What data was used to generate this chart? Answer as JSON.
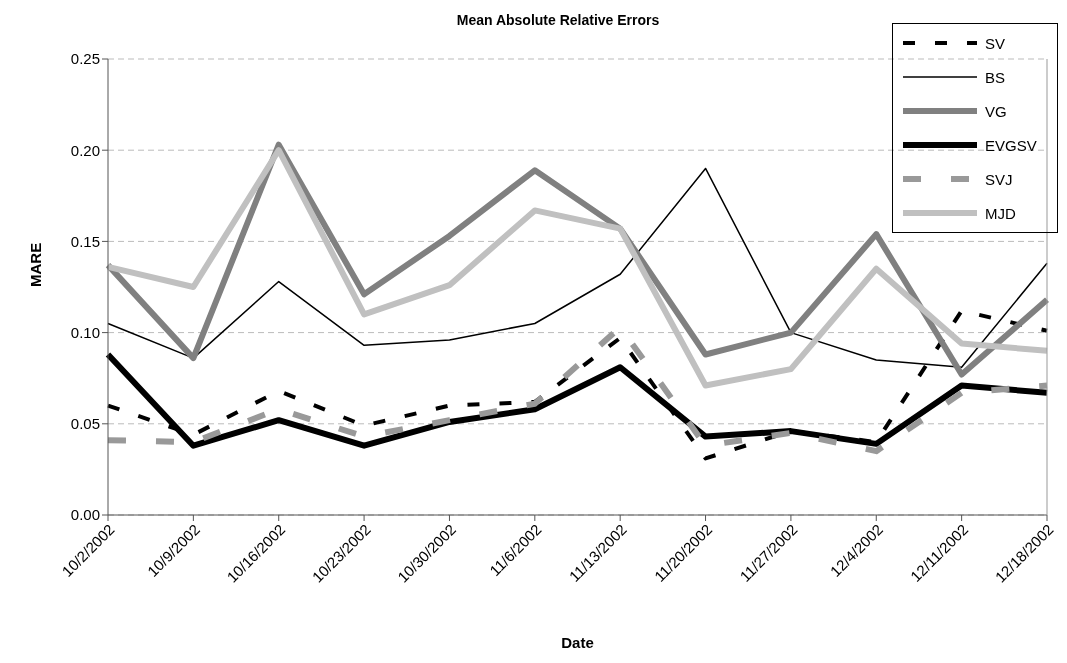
{
  "chart_data": {
    "type": "line",
    "title": "Mean Absolute Relative Errors",
    "xlabel": "Date",
    "ylabel": "MARE",
    "categories": [
      "10/2/2002",
      "10/9/2002",
      "10/16/2002",
      "10/23/2002",
      "10/30/2002",
      "11/6/2002",
      "11/13/2002",
      "11/20/2002",
      "11/27/2002",
      "12/4/2002",
      "12/11/2002",
      "12/18/2002"
    ],
    "series": [
      {
        "name": "SV",
        "color": "#000000",
        "line_style": "dashed",
        "values": [
          0.06,
          0.044,
          0.068,
          0.049,
          0.06,
          0.062,
          0.097,
          0.031,
          0.046,
          0.04,
          0.112,
          0.101
        ]
      },
      {
        "name": "BS",
        "color": "#000000",
        "line_style": "solid",
        "values": [
          0.105,
          0.086,
          0.128,
          0.093,
          0.096,
          0.105,
          0.132,
          0.19,
          0.1,
          0.085,
          0.081,
          0.138
        ]
      },
      {
        "name": "VG",
        "color": "#808080",
        "line_style": "solid",
        "values": [
          0.137,
          0.086,
          0.203,
          0.121,
          0.153,
          0.189,
          0.157,
          0.088,
          0.1,
          0.154,
          0.077,
          0.118
        ]
      },
      {
        "name": "EVGSV",
        "color": "#000000",
        "line_style": "solid",
        "values": [
          0.088,
          0.038,
          0.052,
          0.038,
          0.051,
          0.058,
          0.081,
          0.043,
          0.046,
          0.039,
          0.071,
          0.067
        ]
      },
      {
        "name": "SVJ",
        "color": "#999999",
        "line_style": "dashed",
        "values": [
          0.041,
          0.04,
          0.058,
          0.043,
          0.052,
          0.061,
          0.103,
          0.038,
          0.045,
          0.035,
          0.067,
          0.071
        ]
      },
      {
        "name": "MJD",
        "color": "#c0c0c0",
        "line_style": "solid",
        "values": [
          0.136,
          0.125,
          0.2,
          0.11,
          0.126,
          0.167,
          0.157,
          0.071,
          0.08,
          0.135,
          0.094,
          0.09
        ]
      }
    ],
    "ylim": [
      0,
      0.25
    ],
    "yticks": [
      {
        "value": 0,
        "label": "0.00"
      },
      0.05,
      {
        "value": 0.1,
        "label": "0.10"
      },
      0.15,
      {
        "value": 0.2,
        "label": "0.20"
      },
      0.25
    ],
    "grid": "y",
    "legend": "top right",
    "marker": "none"
  }
}
